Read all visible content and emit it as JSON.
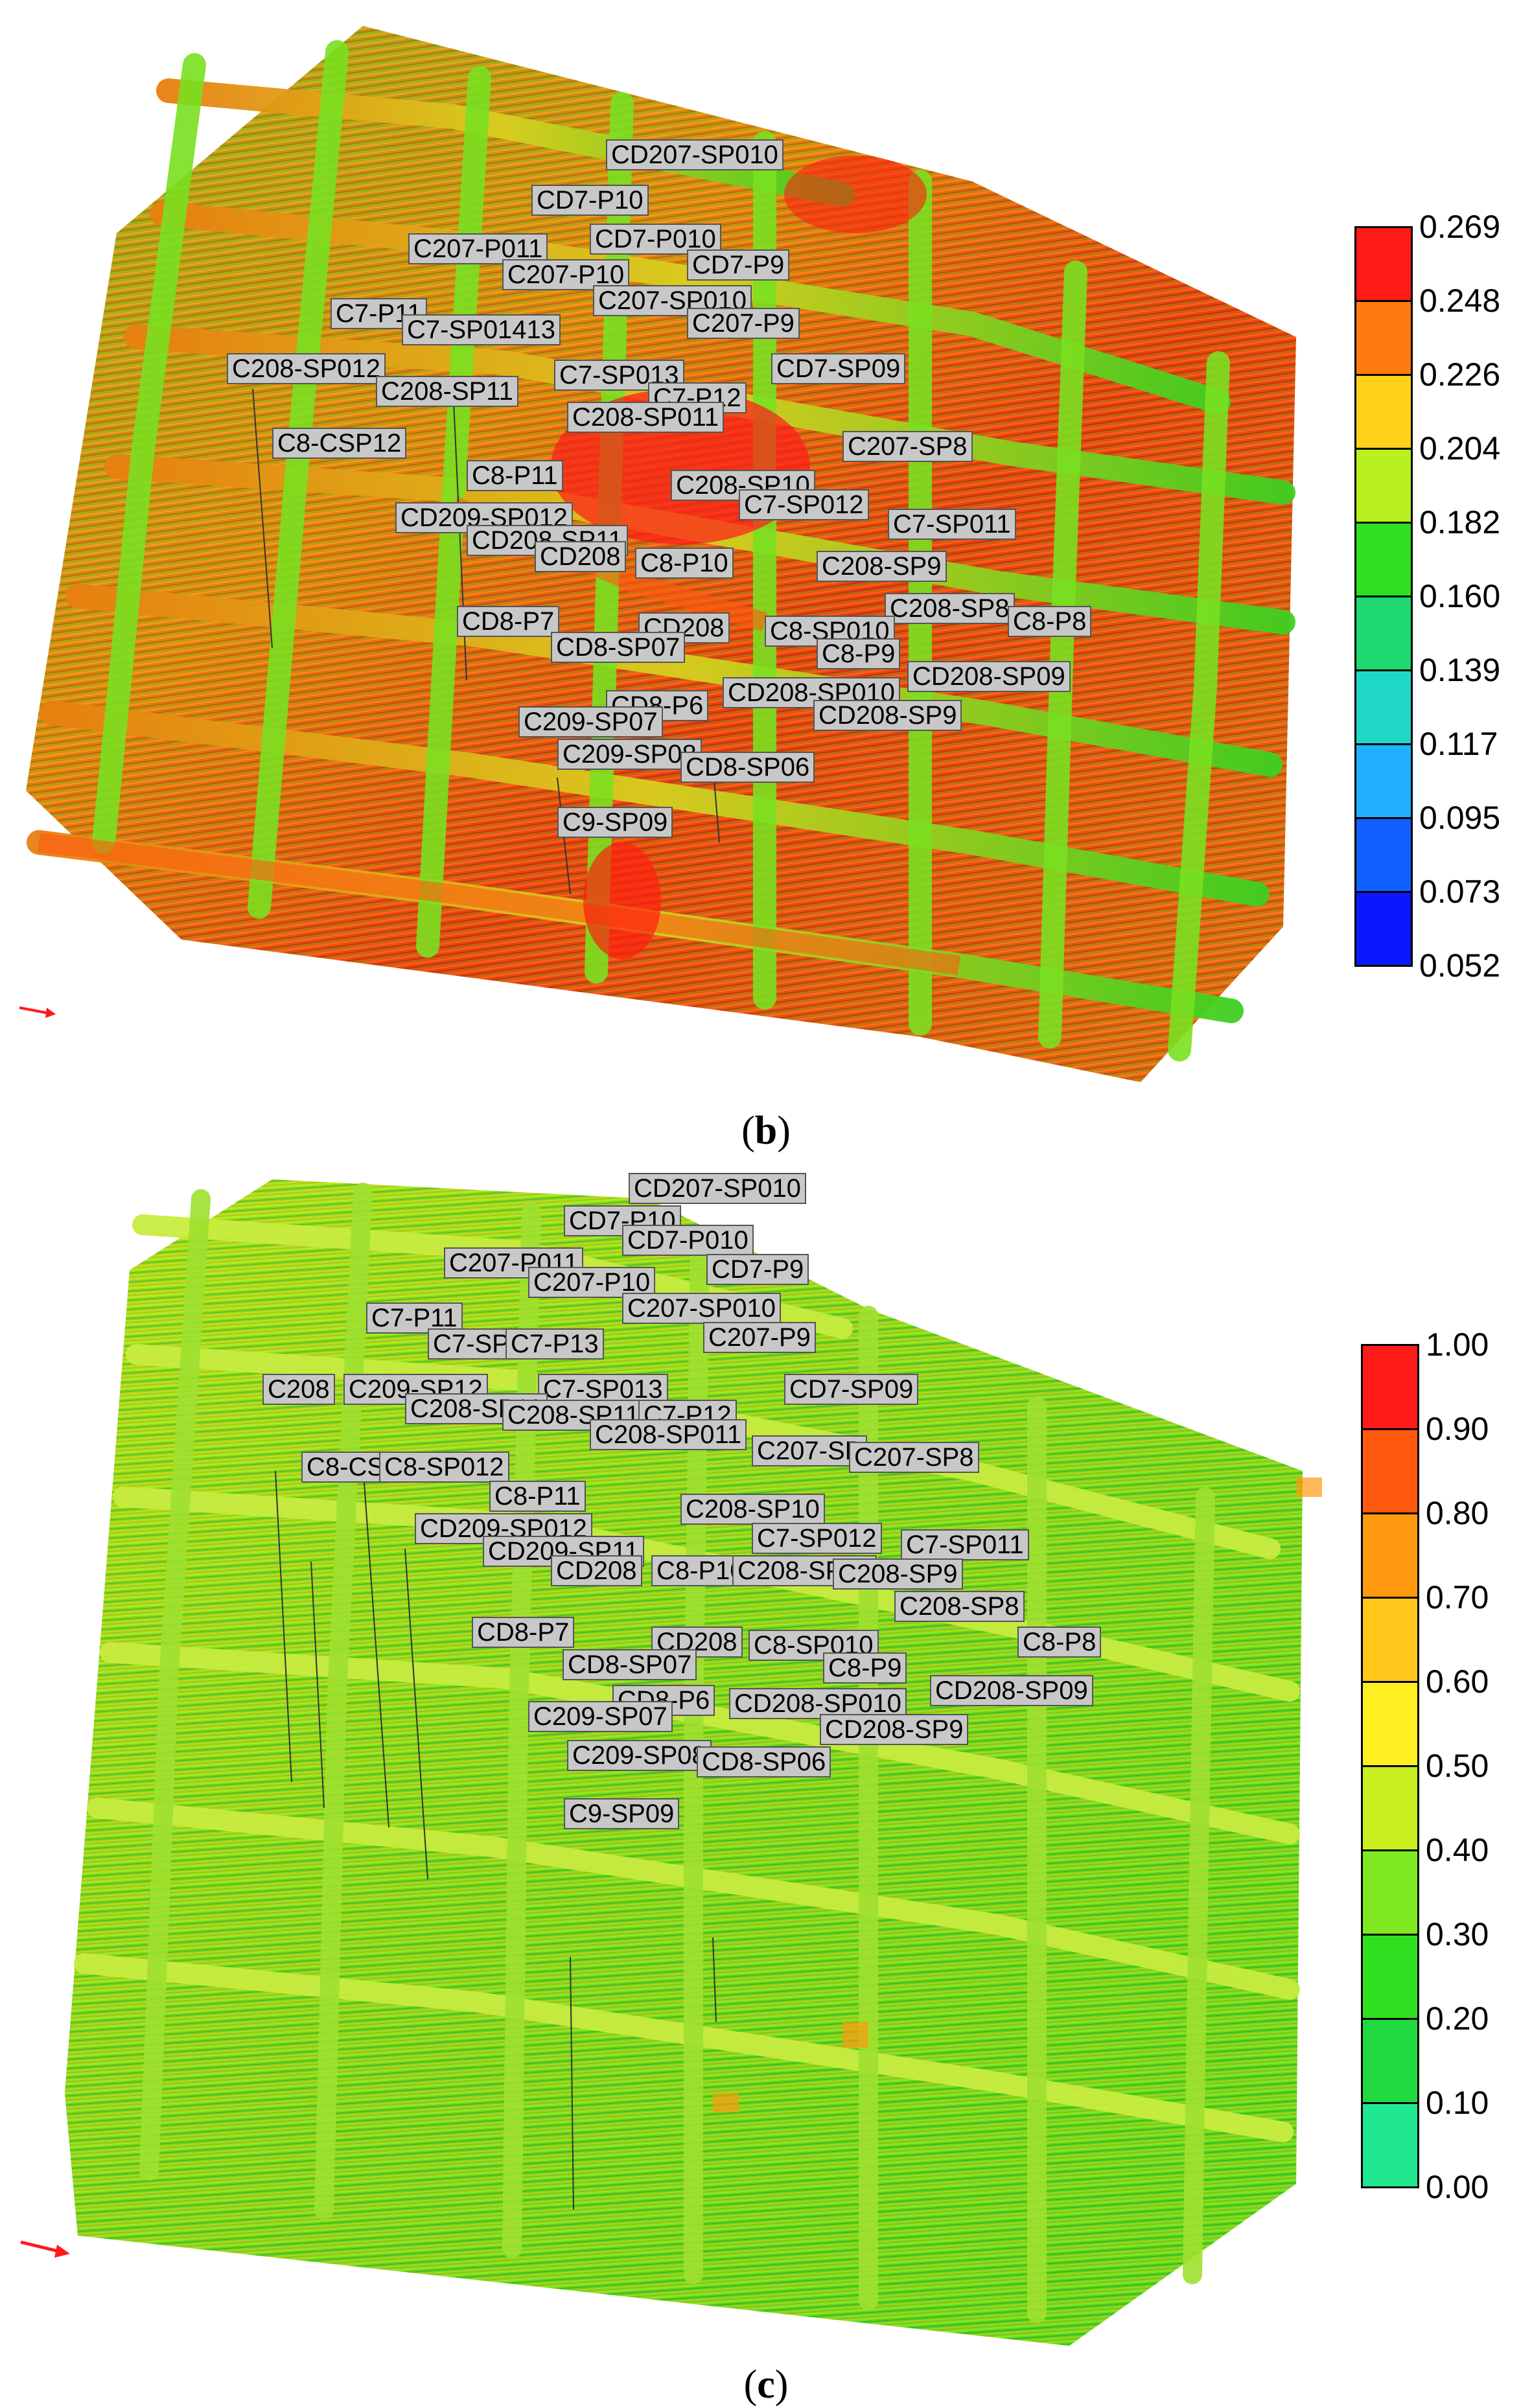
{
  "panels": [
    {
      "id": "b",
      "caption": "(b)",
      "caption_letter": "b",
      "scale_values": [
        "0.269",
        "0.248",
        "0.226",
        "0.204",
        "0.182",
        "0.160",
        "0.139",
        "0.117",
        "0.095",
        "0.073",
        "0.052"
      ],
      "scale_colors": [
        "#ff1a1a",
        "#ff7a10",
        "#ffd21a",
        "#b8f020",
        "#2ee020",
        "#20d870",
        "#20d8c8",
        "#20b0ff",
        "#1060ff",
        "#0a18ff"
      ],
      "labels": [
        "CD207-SP010",
        "CD7-P10",
        "C207-P011",
        "CD7-P010",
        "CD7-P9",
        "C207-P10",
        "C7-P11",
        "C207-SP010",
        "C7-SP01413",
        "C207-P9",
        "C208-SP012",
        "C7-SP013",
        "CD7-SP09",
        "C208-SP11",
        "C7-P12",
        "C208-SP011",
        "C8-CSP12",
        "C207-SP8",
        "C8-P11",
        "C208-SP10",
        "C7-SP012",
        "CD209-SP012",
        "C7-SP011",
        "CD208-SP11",
        "CD208",
        "C8-P10",
        "C208-SP9",
        "C208-SP8",
        "CD8-P7",
        "CD208",
        "C8-SP010",
        "C8-P8",
        "CD8-SP07",
        "C8-P9",
        "CD208-SP09",
        "CD8-P6",
        "CD208-SP010",
        "C209-SP07",
        "CD208-SP9",
        "C209-SP08",
        "CD8-SP06",
        "C9-SP09"
      ]
    },
    {
      "id": "c",
      "caption": "(c)",
      "caption_letter": "c",
      "scale_values": [
        "1.00",
        "0.90",
        "0.80",
        "0.70",
        "0.60",
        "0.50",
        "0.40",
        "0.30",
        "0.20",
        "0.10",
        "0.00"
      ],
      "scale_colors": [
        "#ff1a1a",
        "#ff5a10",
        "#ff9a10",
        "#ffc81a",
        "#ffee20",
        "#c8f020",
        "#7ee820",
        "#2ee020",
        "#20d840",
        "#20e890"
      ],
      "labels": [
        "CD207-SP010",
        "CD7-P10",
        "C207-P011",
        "CD7-P010",
        "C207-P10",
        "CD7-P9",
        "C7-P11",
        "C207-SP010",
        "C7-SP01",
        "C7-P13",
        "C207-P9",
        "C208",
        "C209-SP12",
        "C7-SP013",
        "CD7-SP09",
        "C208-SP11",
        "C208-SP11",
        "C7-P12",
        "C208-SP011",
        "C8-CSP12",
        "C8-SP012",
        "C207-SP",
        "C207-SP8",
        "C8-P11",
        "C208-SP10",
        "CD209-SP012",
        "C7-SP012",
        "CD209-SP11",
        "C7-SP011",
        "CD208",
        "C8-P10",
        "C208-SP10",
        "C208-SP9",
        "C208-SP8",
        "CD8-P7",
        "CD208",
        "C8-SP010",
        "C8-P8",
        "CD8-SP07",
        "C8-P9",
        "CD208-SP09",
        "CD8-P6",
        "CD208-SP010",
        "C209-SP07",
        "CD208-SP9",
        "C209-SP08",
        "CD8-SP06",
        "C9-SP09"
      ]
    }
  ]
}
